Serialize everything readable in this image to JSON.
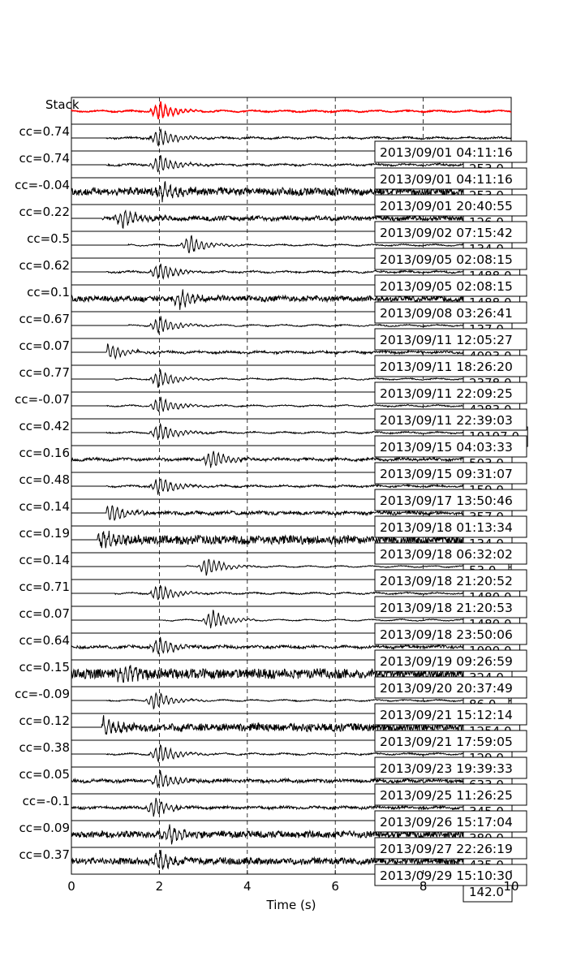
{
  "chart_data": {
    "type": "line",
    "xlabel": "Time (s)",
    "xlim": [
      0,
      10
    ],
    "xticks": [
      0,
      2,
      4,
      6,
      8,
      10
    ],
    "grid": "vertical dashed lines at each x tick",
    "stack": {
      "name": "Stack",
      "color": "#ff0000",
      "peak_time": 2.0
    },
    "traces": [
      {
        "label": "cc=0.74",
        "cc": 0.74,
        "date": "2013/09/01 04:11:16",
        "value_label": "253.0",
        "onset_time": 0.8,
        "peak_time": 2.0,
        "noise": 0.08
      },
      {
        "label": "cc=0.74",
        "cc": 0.74,
        "date": "2013/09/01 04:11:16",
        "value_label": "253.0",
        "onset_time": 0.8,
        "peak_time": 2.0,
        "noise": 0.08
      },
      {
        "label": "cc=-0.04",
        "cc": -0.04,
        "date": "2013/09/01 20:40:55",
        "value_label": "126.0",
        "onset_time": 0.0,
        "peak_time": 2.1,
        "noise": 0.35
      },
      {
        "label": "cc=0.22",
        "cc": 0.22,
        "date": "2013/09/02 07:15:42",
        "value_label": "134.0",
        "onset_time": 0.7,
        "peak_time": 1.2,
        "noise": 0.2
      },
      {
        "label": "cc=0.5",
        "cc": 0.5,
        "date": "2013/09/05 02:08:15",
        "value_label": "1488.0",
        "onset_time": 1.3,
        "peak_time": 2.7,
        "noise": 0.05
      },
      {
        "label": "cc=0.62",
        "cc": 0.62,
        "date": "2013/09/05 02:08:15",
        "value_label": "1488.0",
        "onset_time": 0.8,
        "peak_time": 2.0,
        "noise": 0.08
      },
      {
        "label": "cc=0.1",
        "cc": 0.1,
        "date": "2013/09/08 03:26:41",
        "value_label": "137.0",
        "onset_time": 0.0,
        "peak_time": 2.5,
        "noise": 0.25
      },
      {
        "label": "cc=0.67",
        "cc": 0.67,
        "date": "2013/09/11 12:05:27",
        "value_label": "4093.0",
        "onset_time": 1.3,
        "peak_time": 2.0,
        "noise": 0.05
      },
      {
        "label": "cc=0.07",
        "cc": 0.07,
        "date": "2013/09/11 18:26:20",
        "value_label": "2378.0",
        "onset_time": 0.8,
        "peak_time": 0.8,
        "noise": 0.1
      },
      {
        "label": "cc=0.77",
        "cc": 0.77,
        "date": "2013/09/11 22:09:25",
        "value_label": "4283.0",
        "onset_time": 1.0,
        "peak_time": 2.0,
        "noise": 0.05
      },
      {
        "label": "cc=-0.07",
        "cc": -0.07,
        "date": "2013/09/11 22:39:03",
        "value_label": "10197.0",
        "onset_time": 0.8,
        "peak_time": 2.0,
        "noise": 0.05
      },
      {
        "label": "cc=0.42",
        "cc": 0.42,
        "date": "2013/09/15 04:03:33",
        "value_label": "503.0",
        "onset_time": 0.8,
        "peak_time": 2.0,
        "noise": 0.06
      },
      {
        "label": "cc=0.16",
        "cc": 0.16,
        "date": "2013/09/15 09:31:07",
        "value_label": "159.0",
        "onset_time": 0.0,
        "peak_time": 3.2,
        "noise": 0.12
      },
      {
        "label": "cc=0.48",
        "cc": 0.48,
        "date": "2013/09/17 13:50:46",
        "value_label": "357.0",
        "onset_time": 0.8,
        "peak_time": 2.0,
        "noise": 0.08
      },
      {
        "label": "cc=0.14",
        "cc": 0.14,
        "date": "2013/09/18 01:13:34",
        "value_label": "134.0",
        "onset_time": 0.8,
        "peak_time": 0.9,
        "noise": 0.15
      },
      {
        "label": "cc=0.19",
        "cc": 0.19,
        "date": "2013/09/18 06:32:02",
        "value_label": "53.0",
        "onset_time": 0.6,
        "peak_time": 0.7,
        "noise": 0.4
      },
      {
        "label": "cc=0.14",
        "cc": 0.14,
        "date": "2013/09/18 21:20:52",
        "value_label": "1480.0",
        "onset_time": 2.6,
        "peak_time": 3.1,
        "noise": 0.04
      },
      {
        "label": "cc=0.71",
        "cc": 0.71,
        "date": "2013/09/18 21:20:53",
        "value_label": "1480.0",
        "onset_time": 1.0,
        "peak_time": 2.0,
        "noise": 0.06
      },
      {
        "label": "cc=0.07",
        "cc": 0.07,
        "date": "2013/09/18 23:50:06",
        "value_label": "1090.0",
        "onset_time": 2.1,
        "peak_time": 3.2,
        "noise": 0.04
      },
      {
        "label": "cc=0.64",
        "cc": 0.64,
        "date": "2013/09/19 09:26:59",
        "value_label": "324.0",
        "onset_time": 0.0,
        "peak_time": 2.0,
        "noise": 0.12
      },
      {
        "label": "cc=0.15",
        "cc": 0.15,
        "date": "2013/09/20 20:37:49",
        "value_label": "86.0",
        "onset_time": 0.0,
        "peak_time": 1.2,
        "noise": 0.45
      },
      {
        "label": "cc=-0.09",
        "cc": -0.09,
        "date": "2013/09/21 15:12:14",
        "value_label": "1254.0",
        "onset_time": 0.8,
        "peak_time": 1.9,
        "noise": 0.05
      },
      {
        "label": "cc=0.12",
        "cc": 0.12,
        "date": "2013/09/21 17:59:05",
        "value_label": "129.0",
        "onset_time": 0.7,
        "peak_time": 0.7,
        "noise": 0.35
      },
      {
        "label": "cc=0.38",
        "cc": 0.38,
        "date": "2013/09/23 19:39:33",
        "value_label": "633.0",
        "onset_time": 0.8,
        "peak_time": 2.0,
        "noise": 0.06
      },
      {
        "label": "cc=0.05",
        "cc": 0.05,
        "date": "2013/09/25 11:26:25",
        "value_label": "345.0",
        "onset_time": 0.0,
        "peak_time": 2.0,
        "noise": 0.15
      },
      {
        "label": "cc=-0.1",
        "cc": -0.1,
        "date": "2013/09/26 15:17:04",
        "value_label": "380.0",
        "onset_time": 0.0,
        "peak_time": 1.9,
        "noise": 0.12
      },
      {
        "label": "cc=0.09",
        "cc": 0.09,
        "date": "2013/09/27 22:26:19",
        "value_label": "435.0",
        "onset_time": 0.0,
        "peak_time": 2.2,
        "noise": 0.3
      },
      {
        "label": "cc=0.37",
        "cc": 0.37,
        "date": "2013/09/29 15:10:30",
        "value_label": "142.0",
        "onset_time": 0.0,
        "peak_time": 2.0,
        "noise": 0.3
      }
    ]
  }
}
